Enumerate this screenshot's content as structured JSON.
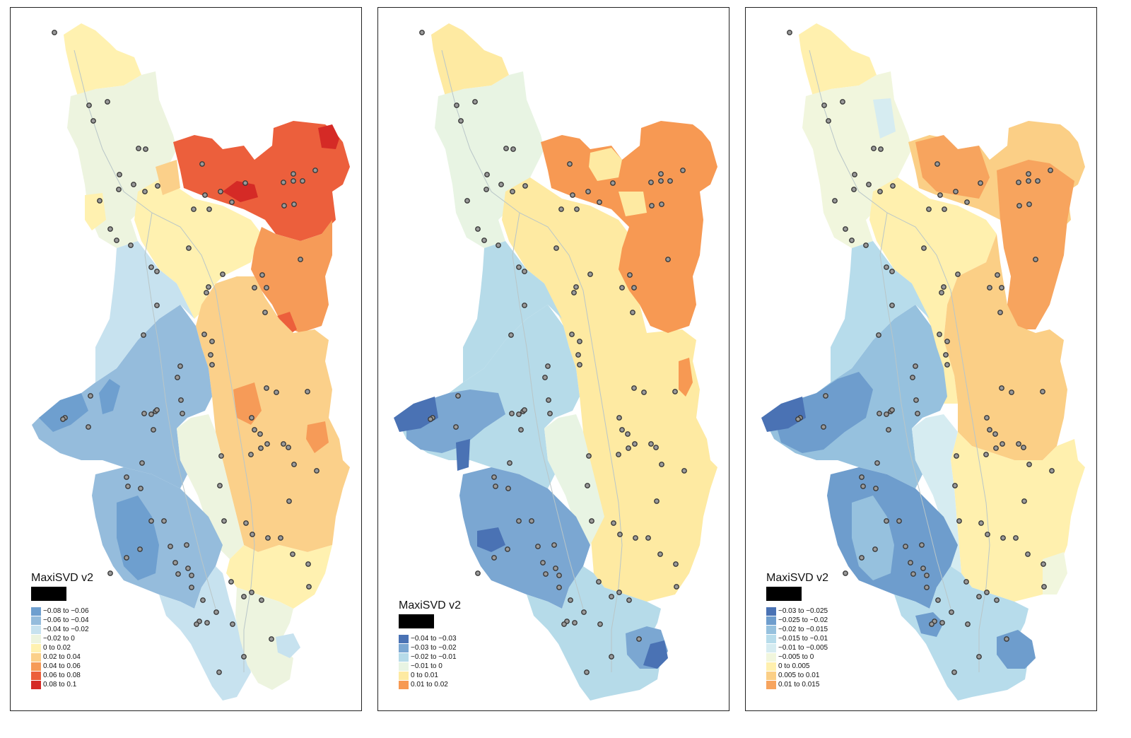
{
  "colors": {
    "station_fill": "#9a9a9a",
    "station_stroke": "#3a3a3a",
    "river": "#b9c6c8"
  },
  "panels": [
    {
      "legend": {
        "title": "MaxiSVD v2",
        "items": [
          {
            "label": "−0.08 to −0.06",
            "color": "#6e9fcf"
          },
          {
            "label": "−0.06 to −0.04",
            "color": "#95bcdc"
          },
          {
            "label": "−0.04 to −0.02",
            "color": "#c7e2ef"
          },
          {
            "label": "−0.02 to    0",
            "color": "#edf4df"
          },
          {
            "label": "  0 to 0.02",
            "color": "#fff1b0"
          },
          {
            "label": "0.02 to 0.04",
            "color": "#fbd08a"
          },
          {
            "label": "0.04 to 0.06",
            "color": "#f69b58"
          },
          {
            "label": "0.06 to 0.08",
            "color": "#ec5f3c"
          },
          {
            "label": "0.08 to 0.1",
            "color": "#d52a26"
          }
        ]
      }
    },
    {
      "legend": {
        "title": "MaxiSVD v2",
        "items": [
          {
            "label": "−0.04 to −0.03",
            "color": "#4a72b4"
          },
          {
            "label": "−0.03 to −0.02",
            "color": "#7ba7d2"
          },
          {
            "label": "−0.02 to −0.01",
            "color": "#b6dbe9"
          },
          {
            "label": "−0.01 to    0",
            "color": "#e8f4e3"
          },
          {
            "label": "  0 to 0.01",
            "color": "#feeaa2"
          },
          {
            "label": "0.01 to 0.02",
            "color": "#f79953"
          }
        ]
      }
    },
    {
      "legend": {
        "title": "MaxiSVD v2",
        "items": [
          {
            "label": "−0.03 to −0.025",
            "color": "#4a72b4"
          },
          {
            "label": "−0.025 to −0.02",
            "color": "#6e9dcd"
          },
          {
            "label": "−0.02 to −0.015",
            "color": "#96c1de"
          },
          {
            "label": "−0.015 to −0.01",
            "color": "#b7dceb"
          },
          {
            "label": "−0.01 to −0.005",
            "color": "#d6ecf1"
          },
          {
            "label": "−0.005 to    0",
            "color": "#f1f6dd"
          },
          {
            "label": "  0 to 0.005",
            "color": "#fff0ae"
          },
          {
            "label": "0.005 to 0.01",
            "color": "#fbcf86"
          },
          {
            "label": "0.01 to 0.015",
            "color": "#f7a45e"
          }
        ]
      }
    }
  ]
}
